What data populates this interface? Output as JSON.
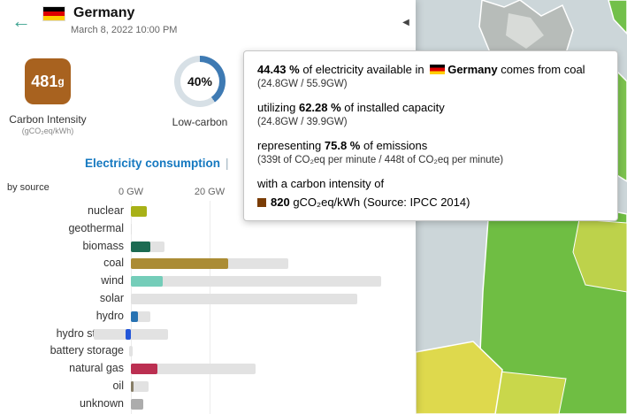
{
  "header": {
    "country": "Germany",
    "datetime": "March 8, 2022 10:00 PM"
  },
  "panel": {
    "back_icon": "←",
    "collapse_icon": "◀"
  },
  "metrics": {
    "carbon_intensity": {
      "value": "481",
      "unit": "g",
      "label": "Carbon Intensity",
      "sublabel": "(gCO₂eq/kWh)",
      "color": "#a8621f"
    },
    "low_carbon": {
      "value": "40%",
      "label": "Low-carbon",
      "percent": 40,
      "fill_color": "#3e7ab3",
      "track_color": "#d7e0e6"
    }
  },
  "tabs": {
    "active_label": "Electricity consumption",
    "separator": "|"
  },
  "chart": {
    "by_source": "by source"
  },
  "chart_data": {
    "type": "bar",
    "title": "Electricity consumption by source",
    "unit": "GW",
    "x_axis": {
      "ticks": [
        "0 GW",
        "20 GW"
      ],
      "tick_values": [
        0,
        20
      ]
    },
    "sources": [
      {
        "name": "nuclear",
        "production": 4.0,
        "capacity": 4.1,
        "color": "#a8b117",
        "storage": false
      },
      {
        "name": "geothermal",
        "production": 0,
        "capacity": 0.05,
        "color": "#ba6915",
        "storage": false
      },
      {
        "name": "biomass",
        "production": 4.9,
        "capacity": 8.6,
        "color": "#1c6b52",
        "storage": false
      },
      {
        "name": "coal",
        "production": 24.8,
        "capacity": 39.9,
        "color": "#ab8c35",
        "storage": false
      },
      {
        "name": "wind",
        "production": 8.2,
        "capacity": 63.5,
        "color": "#74cdb9",
        "storage": false
      },
      {
        "name": "solar",
        "production": 0,
        "capacity": 57.5,
        "color": "#f2d85c",
        "storage": false
      },
      {
        "name": "hydro",
        "production": 1.8,
        "capacity": 4.9,
        "color": "#2772b2",
        "storage": false
      },
      {
        "name": "hydro storage",
        "production": -1.4,
        "capacity": 9.5,
        "color": "#2356d8",
        "storage": true
      },
      {
        "name": "battery storage",
        "production": 0,
        "capacity": 0.4,
        "color": "#b77af0",
        "storage": true
      },
      {
        "name": "natural gas",
        "production": 6.7,
        "capacity": 31.6,
        "color": "#bb2f51",
        "storage": false
      },
      {
        "name": "oil",
        "production": 0.6,
        "capacity": 4.4,
        "color": "#867d66",
        "storage": false
      },
      {
        "name": "unknown",
        "production": 3.2,
        "capacity": 3.2,
        "color": "#acacac",
        "storage": false
      }
    ]
  },
  "tooltip": {
    "pct_electricity": "44.43 %",
    "text_electricity_pre": " of electricity available in ",
    "country": "Germany",
    "text_electricity_post": " comes from coal",
    "ratio_electricity": "(24.8GW / 55.9GW)",
    "text_capacity_pre": "utilizing ",
    "pct_capacity": "62.28 %",
    "text_capacity_post": " of installed capacity",
    "ratio_capacity": "(24.8GW / 39.9GW)",
    "text_emissions_pre": "representing ",
    "pct_emissions": "75.8 %",
    "text_emissions_post": " of emissions",
    "ratio_emissions": "(339t of CO₂eq per minute / 448t of CO₂eq per minute)",
    "text_intensity": "with a carbon intensity of",
    "intensity_value": "820",
    "intensity_unit": " gCO₂eq/kWh ",
    "intensity_source": "(Source: IPCC 2014)",
    "swatch_color": "#7a3c05"
  }
}
